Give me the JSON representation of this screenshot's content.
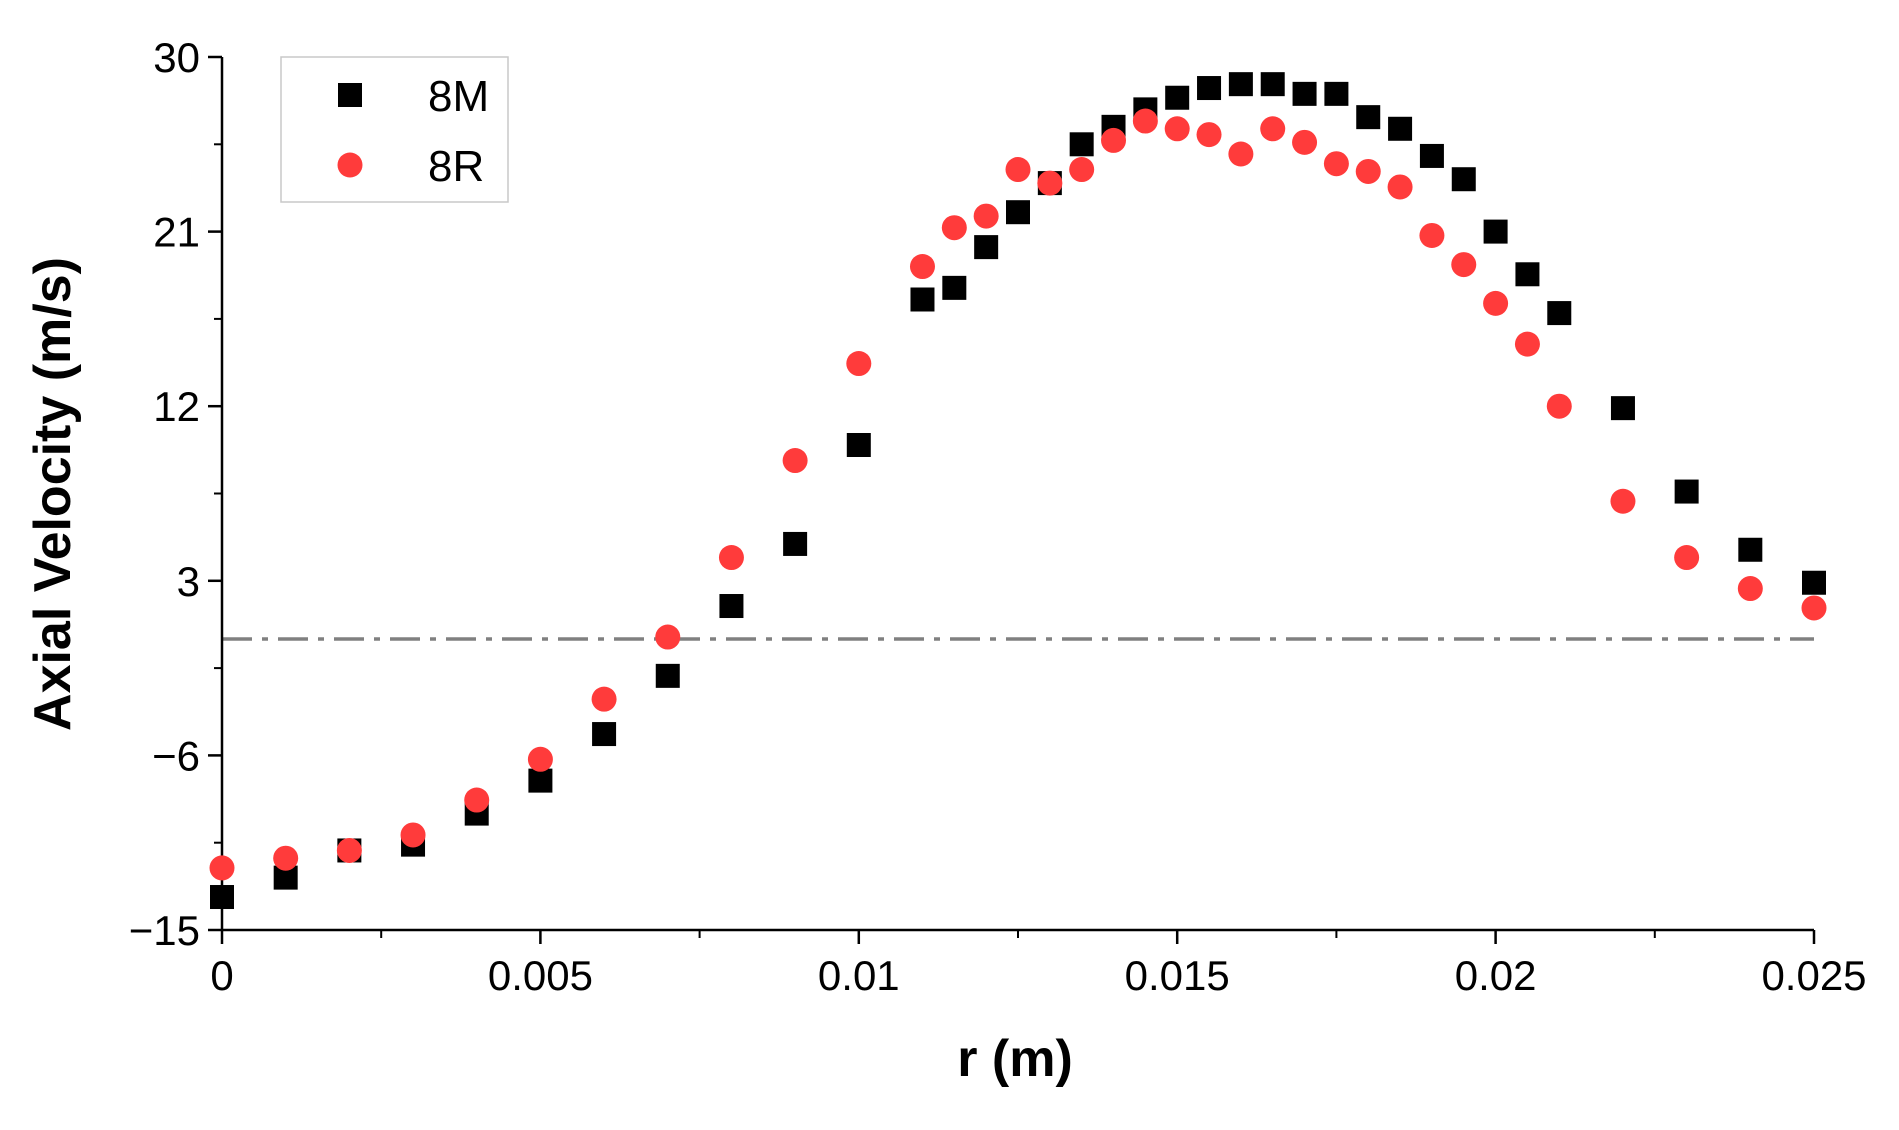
{
  "chart_data": {
    "type": "scatter",
    "title": "",
    "xlabel": "r (m)",
    "ylabel": "Axial Velocity (m/s)",
    "xlim": [
      0,
      0.025
    ],
    "ylim": [
      -15,
      30
    ],
    "x_ticks": [
      0,
      0.005,
      0.01,
      0.015,
      0.02,
      0.025
    ],
    "x_tick_labels": [
      "0",
      "0.005",
      "0.01",
      "0.015",
      "0.02",
      "0.025"
    ],
    "y_ticks": [
      -15,
      -6,
      3,
      12,
      21,
      30
    ],
    "y_tick_labels": [
      "−15",
      "−6",
      "3",
      "12",
      "21",
      "30"
    ],
    "grid": false,
    "legend": {
      "position": "top-left",
      "entries": [
        "8M",
        "8R"
      ]
    },
    "reference_line": {
      "y": 0,
      "style": "dash-dot",
      "color": "#808080"
    },
    "series": [
      {
        "name": "8M",
        "marker": "square",
        "color": "#000000",
        "points": [
          [
            0.0,
            -13.3
          ],
          [
            0.001,
            -12.3
          ],
          [
            0.002,
            -10.9
          ],
          [
            0.003,
            -10.6
          ],
          [
            0.004,
            -9.0
          ],
          [
            0.005,
            -7.3
          ],
          [
            0.006,
            -4.9
          ],
          [
            0.007,
            -1.9
          ],
          [
            0.008,
            1.7
          ],
          [
            0.009,
            4.9
          ],
          [
            0.01,
            10.0
          ],
          [
            0.011,
            17.5
          ],
          [
            0.0115,
            18.1
          ],
          [
            0.012,
            20.2
          ],
          [
            0.0125,
            22.0
          ],
          [
            0.013,
            23.5
          ],
          [
            0.0135,
            25.5
          ],
          [
            0.014,
            26.4
          ],
          [
            0.0145,
            27.3
          ],
          [
            0.015,
            27.9
          ],
          [
            0.0155,
            28.4
          ],
          [
            0.016,
            28.6
          ],
          [
            0.0165,
            28.6
          ],
          [
            0.017,
            28.1
          ],
          [
            0.0175,
            28.1
          ],
          [
            0.018,
            26.9
          ],
          [
            0.0185,
            26.3
          ],
          [
            0.019,
            24.9
          ],
          [
            0.0195,
            23.7
          ],
          [
            0.02,
            21.0
          ],
          [
            0.0205,
            18.8
          ],
          [
            0.021,
            16.8
          ],
          [
            0.022,
            11.9
          ],
          [
            0.023,
            7.6
          ],
          [
            0.024,
            4.6
          ],
          [
            0.025,
            2.9
          ]
        ]
      },
      {
        "name": "8R",
        "marker": "circle",
        "color": "#ff3b3b",
        "points": [
          [
            0.0,
            -11.8
          ],
          [
            0.001,
            -11.3
          ],
          [
            0.002,
            -10.9
          ],
          [
            0.003,
            -10.1
          ],
          [
            0.004,
            -8.3
          ],
          [
            0.005,
            -6.2
          ],
          [
            0.006,
            -3.1
          ],
          [
            0.007,
            0.1
          ],
          [
            0.008,
            4.2
          ],
          [
            0.009,
            9.2
          ],
          [
            0.01,
            14.2
          ],
          [
            0.011,
            19.2
          ],
          [
            0.0115,
            21.2
          ],
          [
            0.012,
            21.8
          ],
          [
            0.0125,
            24.2
          ],
          [
            0.013,
            23.5
          ],
          [
            0.0135,
            24.2
          ],
          [
            0.014,
            25.7
          ],
          [
            0.0145,
            26.7
          ],
          [
            0.015,
            26.3
          ],
          [
            0.0155,
            26.0
          ],
          [
            0.016,
            25.0
          ],
          [
            0.0165,
            26.3
          ],
          [
            0.017,
            25.6
          ],
          [
            0.0175,
            24.5
          ],
          [
            0.018,
            24.1
          ],
          [
            0.0185,
            23.3
          ],
          [
            0.019,
            20.8
          ],
          [
            0.0195,
            19.3
          ],
          [
            0.02,
            17.3
          ],
          [
            0.0205,
            15.2
          ],
          [
            0.021,
            12.0
          ],
          [
            0.022,
            7.1
          ],
          [
            0.023,
            4.2
          ],
          [
            0.024,
            2.6
          ],
          [
            0.025,
            1.6
          ]
        ]
      }
    ]
  }
}
